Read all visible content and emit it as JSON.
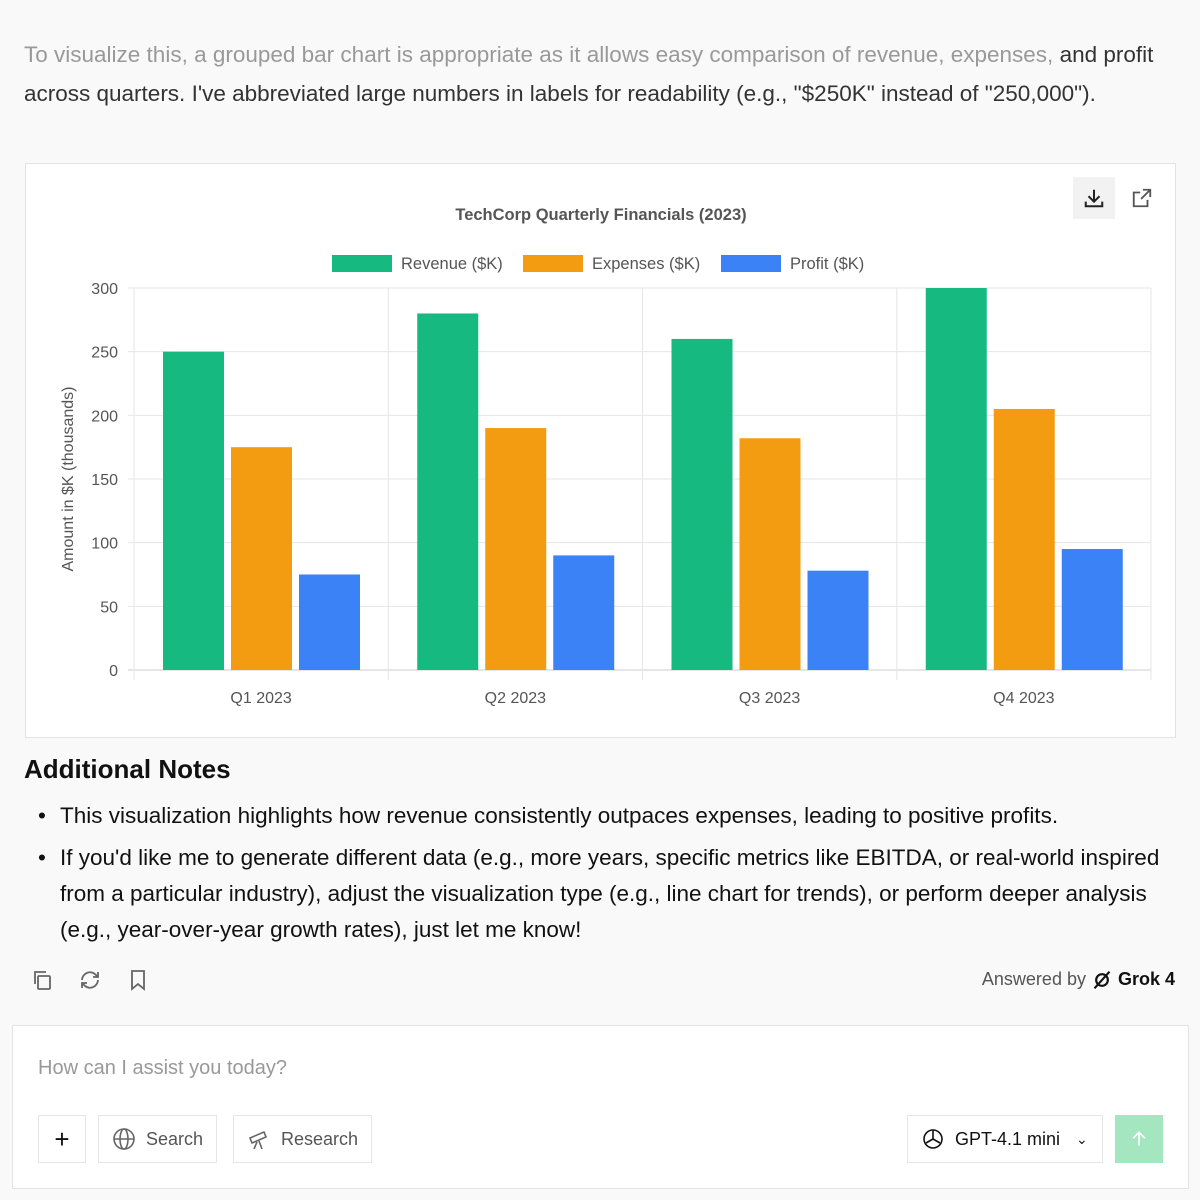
{
  "intro": {
    "faded": "To visualize this, a grouped bar chart is appropriate as it allows easy comparison of revenue, expenses,",
    "rest": "and profit across quarters. I've abbreviated large numbers in labels for readability (e.g., \"$250K\" instead of \"250,000\")."
  },
  "chart_card": {
    "download_icon": "download-icon",
    "open_icon": "external-link-icon"
  },
  "chart_data": {
    "type": "bar",
    "title": "TechCorp Quarterly Financials (2023)",
    "xlabel": "",
    "ylabel": "Amount in $K (thousands)",
    "categories": [
      "Q1 2023",
      "Q2 2023",
      "Q3 2023",
      "Q4 2023"
    ],
    "series": [
      {
        "name": "Revenue ($K)",
        "color": "#16b980",
        "values": [
          250,
          280,
          260,
          300
        ]
      },
      {
        "name": "Expenses ($K)",
        "color": "#f39c12",
        "values": [
          175,
          190,
          182,
          205
        ]
      },
      {
        "name": "Profit ($K)",
        "color": "#3b82f6",
        "values": [
          75,
          90,
          78,
          95
        ]
      }
    ],
    "ylim": [
      0,
      300
    ],
    "yticks": [
      0,
      50,
      100,
      150,
      200,
      250,
      300
    ],
    "grid": true,
    "legend": "top"
  },
  "notes": {
    "heading": "Additional Notes",
    "items": [
      "This visualization highlights how revenue consistently outpaces expenses, leading to positive profits.",
      "If you'd like me to generate different data (e.g., more years, specific metrics like EBITDA, or real-world inspired from a particular industry), adjust the visualization type (e.g., line chart for trends), or perform deeper analysis (e.g., year-over-year growth rates), just let me know!"
    ]
  },
  "answered": {
    "prefix": "Answered by",
    "model": "Grok 4"
  },
  "composer": {
    "placeholder": "How can I assist you today?",
    "search_label": "Search",
    "research_label": "Research",
    "model_label": "GPT-4.1 mini"
  }
}
